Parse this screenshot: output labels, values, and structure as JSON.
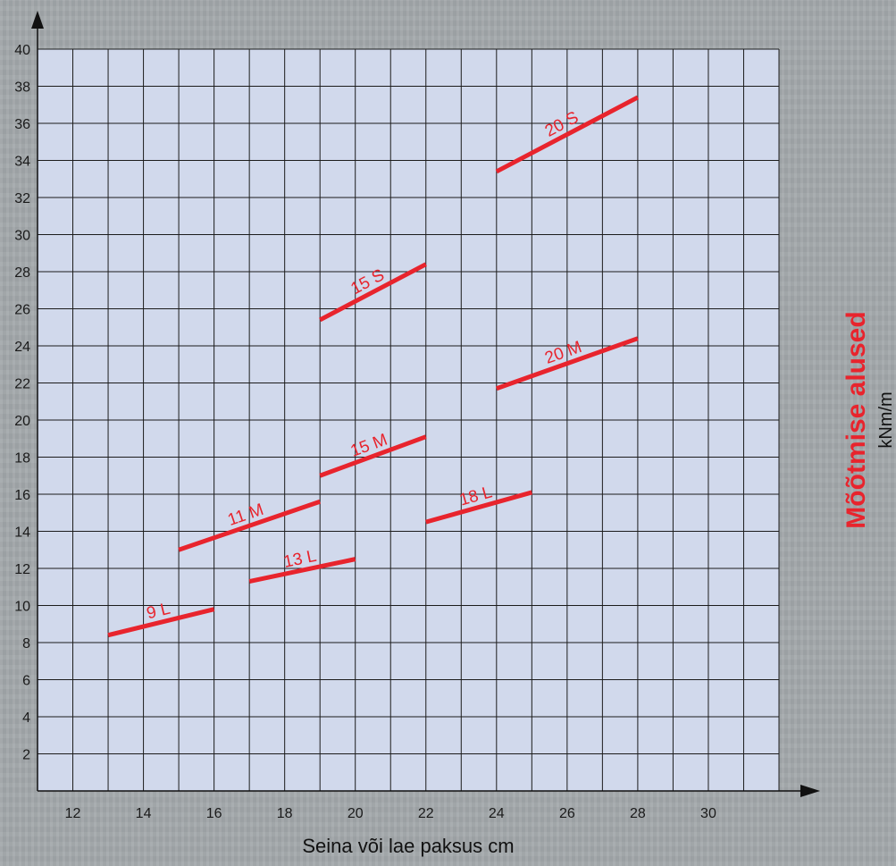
{
  "chart_data": {
    "type": "line",
    "title": "",
    "xlabel": "Seina või lae paksus cm",
    "ylabel": "Mõõtmise alused",
    "yunit": "kNm/m",
    "xlim": [
      11,
      32
    ],
    "ylim": [
      0,
      40
    ],
    "x_ticks": [
      12,
      14,
      16,
      18,
      20,
      22,
      24,
      26,
      28,
      30
    ],
    "y_ticks": [
      2,
      4,
      6,
      8,
      10,
      12,
      14,
      16,
      18,
      20,
      22,
      24,
      26,
      28,
      30,
      32,
      34,
      36,
      38,
      40
    ],
    "grid": true,
    "series": [
      {
        "name": "9 L",
        "x": [
          13,
          16
        ],
        "y": [
          8.4,
          9.8
        ]
      },
      {
        "name": "11 M",
        "x": [
          15,
          19
        ],
        "y": [
          13.0,
          15.6
        ]
      },
      {
        "name": "13 L",
        "x": [
          17,
          20
        ],
        "y": [
          11.3,
          12.5
        ]
      },
      {
        "name": "15 M",
        "x": [
          19,
          22
        ],
        "y": [
          17.0,
          19.1
        ]
      },
      {
        "name": "15 S",
        "x": [
          19,
          22
        ],
        "y": [
          25.4,
          28.4
        ]
      },
      {
        "name": "18 L",
        "x": [
          22,
          25
        ],
        "y": [
          14.5,
          16.1
        ]
      },
      {
        "name": "20 M",
        "x": [
          24,
          28
        ],
        "y": [
          21.7,
          24.4
        ]
      },
      {
        "name": "20 S",
        "x": [
          24,
          28
        ],
        "y": [
          33.4,
          37.4
        ]
      }
    ]
  },
  "colors": {
    "plot_bg": "#d1d9ec",
    "grid": "#1c1c1c",
    "series": "#e8242d",
    "ylabel": "#e8242d",
    "axis": "#111111"
  }
}
